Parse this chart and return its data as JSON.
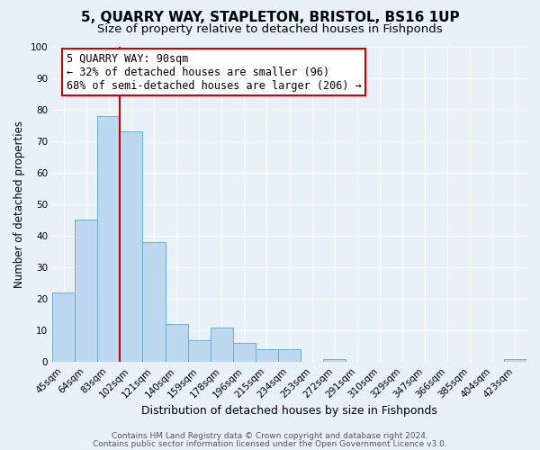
{
  "title": "5, QUARRY WAY, STAPLETON, BRISTOL, BS16 1UP",
  "subtitle": "Size of property relative to detached houses in Fishponds",
  "xlabel": "Distribution of detached houses by size in Fishponds",
  "ylabel": "Number of detached properties",
  "bar_labels": [
    "45sqm",
    "64sqm",
    "83sqm",
    "102sqm",
    "121sqm",
    "140sqm",
    "159sqm",
    "178sqm",
    "196sqm",
    "215sqm",
    "234sqm",
    "253sqm",
    "272sqm",
    "291sqm",
    "310sqm",
    "329sqm",
    "347sqm",
    "366sqm",
    "385sqm",
    "404sqm",
    "423sqm"
  ],
  "bar_values": [
    22,
    45,
    78,
    73,
    38,
    12,
    7,
    11,
    6,
    4,
    4,
    0,
    1,
    0,
    0,
    0,
    0,
    0,
    0,
    0,
    1
  ],
  "bar_color": "#bdd7ee",
  "bar_edge_color": "#6baed6",
  "vline_x_index": 2,
  "vline_color": "#cc0000",
  "annotation_line1": "5 QUARRY WAY: 90sqm",
  "annotation_line2": "← 32% of detached houses are smaller (96)",
  "annotation_line3": "68% of semi-detached houses are larger (206) →",
  "annotation_box_color": "#cc0000",
  "ylim": [
    0,
    100
  ],
  "yticks": [
    0,
    10,
    20,
    30,
    40,
    50,
    60,
    70,
    80,
    90,
    100
  ],
  "bg_color": "#e8f0f8",
  "footer1": "Contains HM Land Registry data © Crown copyright and database right 2024.",
  "footer2": "Contains public sector information licensed under the Open Government Licence v3.0.",
  "title_fontsize": 11,
  "subtitle_fontsize": 9.5,
  "xlabel_fontsize": 9,
  "ylabel_fontsize": 8.5,
  "tick_fontsize": 7.5,
  "annotation_fontsize": 8.5,
  "footer_fontsize": 6.5
}
